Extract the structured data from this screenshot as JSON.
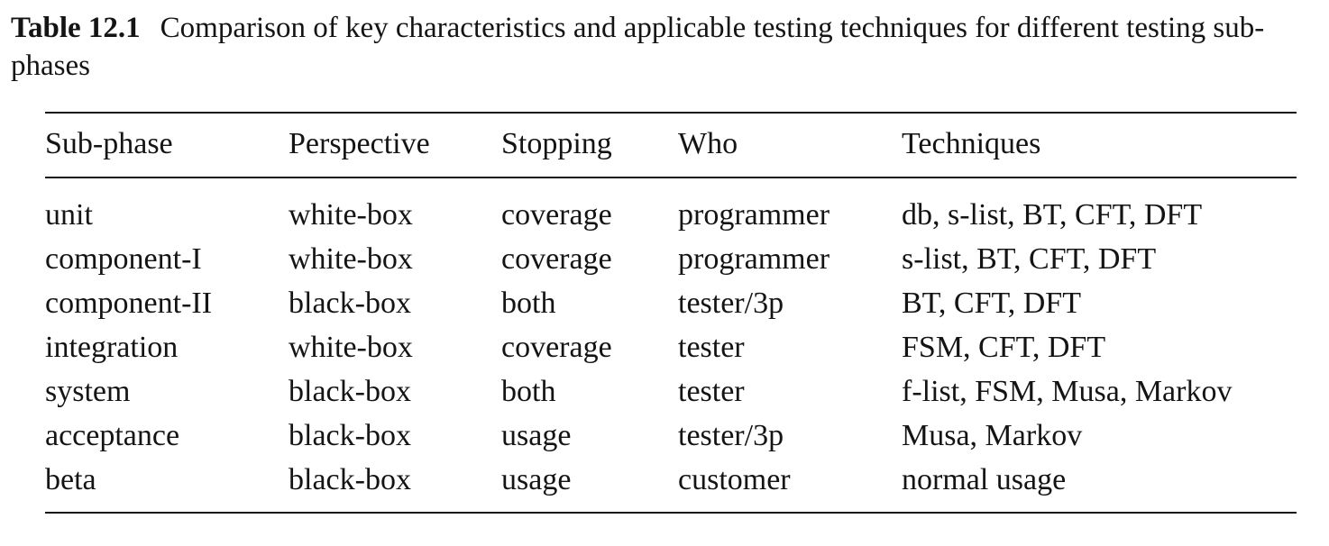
{
  "caption": {
    "label": "Table 12.1",
    "text": "Comparison of key characteristics and applicable testing techniques for different testing sub-phases"
  },
  "table": {
    "headers": [
      "Sub-phase",
      "Perspective",
      "Stopping",
      "Who",
      "Techniques"
    ],
    "rows": [
      [
        "unit",
        "white-box",
        "coverage",
        "programmer",
        "db, s-list, BT, CFT, DFT"
      ],
      [
        "component-I",
        "white-box",
        "coverage",
        "programmer",
        "s-list, BT, CFT, DFT"
      ],
      [
        "component-II",
        "black-box",
        "both",
        "tester/3p",
        "BT, CFT, DFT"
      ],
      [
        "integration",
        "white-box",
        "coverage",
        "tester",
        "FSM, CFT, DFT"
      ],
      [
        "system",
        "black-box",
        "both",
        "tester",
        "f-list, FSM, Musa, Markov"
      ],
      [
        "acceptance",
        "black-box",
        "usage",
        "tester/3p",
        "Musa, Markov"
      ],
      [
        "beta",
        "black-box",
        "usage",
        "customer",
        "normal usage"
      ]
    ]
  }
}
